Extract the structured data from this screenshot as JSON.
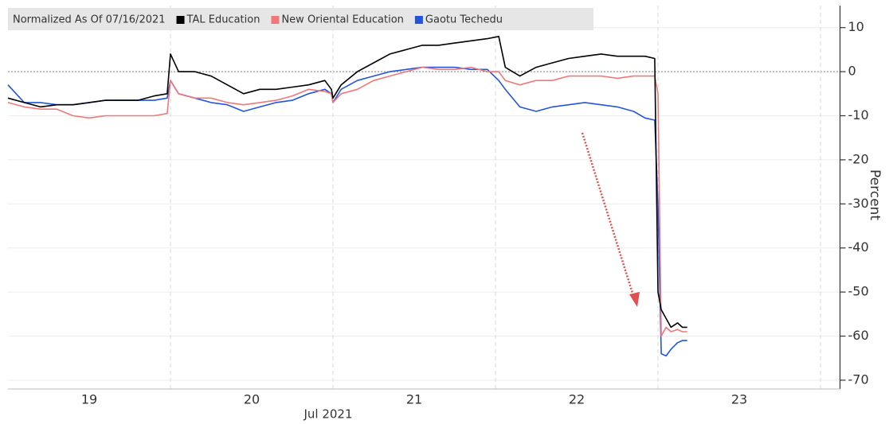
{
  "chart_data": {
    "type": "line",
    "legend_title": "Normalized As Of 07/16/2021",
    "y_axis_label": "Percent",
    "x_axis_label": "Jul 2021",
    "x": [
      19.0,
      19.1,
      19.2,
      19.3,
      19.4,
      19.5,
      19.6,
      19.7,
      19.8,
      19.9,
      19.98,
      20.0,
      20.05,
      20.15,
      20.25,
      20.35,
      20.45,
      20.55,
      20.65,
      20.75,
      20.85,
      20.95,
      20.99,
      21.0,
      21.05,
      21.15,
      21.25,
      21.35,
      21.45,
      21.55,
      21.65,
      21.75,
      21.85,
      21.95,
      22.02,
      22.06,
      22.15,
      22.25,
      22.35,
      22.45,
      22.55,
      22.65,
      22.75,
      22.85,
      22.92,
      22.98,
      23.0,
      23.02,
      23.05,
      23.08,
      23.12,
      23.15,
      23.18
    ],
    "series": [
      {
        "name": "TAL Education",
        "color": "#000000",
        "values": [
          -6,
          -7,
          -8,
          -7.5,
          -7.5,
          -7,
          -6.5,
          -6.5,
          -6.5,
          -5.5,
          -5,
          4,
          0,
          0,
          -1,
          -3,
          -5,
          -4,
          -4,
          -3.5,
          -3,
          -2,
          -4,
          -6,
          -3,
          0,
          2,
          4,
          5,
          6,
          6,
          6.5,
          7,
          7.5,
          8,
          1,
          -1,
          1,
          2,
          3,
          3.5,
          4,
          3.5,
          3.5,
          3.5,
          3,
          -50,
          -54,
          -56,
          -58,
          -57,
          -58,
          -58
        ]
      },
      {
        "name": "New Oriental Education",
        "color": "#f07878",
        "values": [
          -7,
          -8,
          -8.5,
          -8.5,
          -10,
          -10.5,
          -10,
          -10,
          -10,
          -10,
          -9.5,
          -2,
          -5,
          -6,
          -6,
          -7,
          -7.5,
          -7,
          -6.5,
          -5.5,
          -4,
          -4.5,
          -5,
          -7,
          -5,
          -4,
          -2,
          -1,
          0,
          1,
          0.5,
          0.5,
          1,
          0,
          0,
          -2,
          -3,
          -2,
          -2,
          -1,
          -1,
          -1,
          -1.5,
          -1,
          -1,
          -1,
          -5,
          -60,
          -58,
          -59,
          -58.5,
          -59,
          -59
        ]
      },
      {
        "name": "Gaotu Techedu",
        "color": "#2255dd",
        "values": [
          -3,
          -7,
          -7,
          -7.5,
          -7.5,
          -7,
          -6.5,
          -6.5,
          -6.5,
          -6.5,
          -6,
          -2,
          -5,
          -6,
          -7,
          -7.5,
          -9,
          -8,
          -7,
          -6.5,
          -5,
          -4,
          -5,
          -7,
          -4,
          -2,
          -1,
          0,
          0.5,
          1,
          1,
          1,
          0.5,
          0.5,
          -2,
          -4,
          -8,
          -9,
          -8,
          -7.5,
          -7,
          -7.5,
          -8,
          -9,
          -10.5,
          -11,
          -30,
          -64,
          -64.5,
          -63,
          -61.5,
          -61,
          -61
        ]
      }
    ],
    "xlim": [
      19,
      24.12
    ],
    "xticks": [
      {
        "value": 19.5,
        "label": "19"
      },
      {
        "value": 20.5,
        "label": "20"
      },
      {
        "value": 21.5,
        "label": "21"
      },
      {
        "value": 22.5,
        "label": "22"
      },
      {
        "value": 23.5,
        "label": "23"
      }
    ],
    "xgrid": [
      20,
      21,
      22,
      23,
      24
    ],
    "ylim": [
      -72,
      15
    ],
    "yticks": [
      10,
      0,
      -10,
      -20,
      -30,
      -40,
      -50,
      -60,
      -70
    ],
    "y_axis_side": "right",
    "grid": true,
    "zero_line": true
  }
}
